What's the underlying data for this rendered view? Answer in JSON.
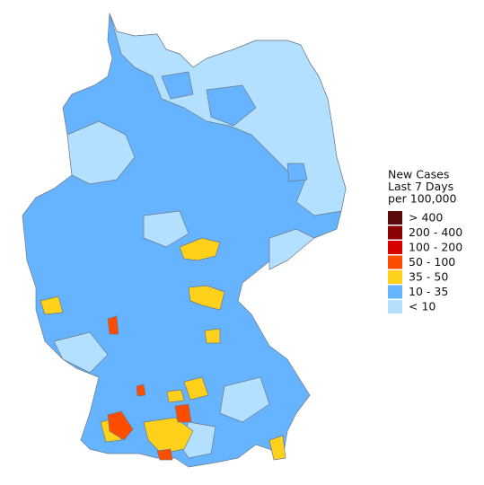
{
  "legend": {
    "title": [
      "New Cases",
      "Last 7 Days",
      "per 100,000"
    ],
    "items": [
      {
        "label": "> 400",
        "color": "#5a0a0a"
      },
      {
        "label": "200 - 400",
        "color": "#8b0000"
      },
      {
        "label": "100 - 200",
        "color": "#d90000"
      },
      {
        "label": "50 - 100",
        "color": "#ff4d00"
      },
      {
        "label": "35 - 50",
        "color": "#ffd11a"
      },
      {
        "label": "10 - 35",
        "color": "#66b3ff"
      },
      {
        "label": "< 10",
        "color": "#b3e0ff"
      }
    ]
  }
}
